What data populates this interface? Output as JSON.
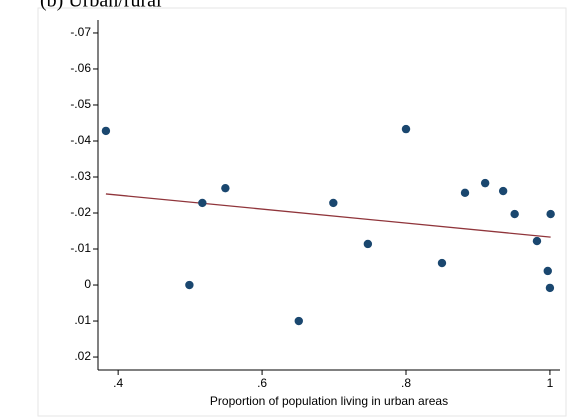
{
  "chart_data": {
    "type": "scatter",
    "title": "(b) Urban/rural",
    "x_label": "Proportion of population living in urban areas",
    "x": [
      0.383,
      0.517,
      0.549,
      0.499,
      0.651,
      0.699,
      0.747,
      0.8,
      0.85,
      0.882,
      0.91,
      0.935,
      0.951,
      0.982,
      0.997,
      1.001,
      1.0
    ],
    "values": [
      -0.0428,
      -0.0228,
      -0.0269,
      0,
      0.01,
      -0.0228,
      -0.0114,
      -0.0433,
      -0.0061,
      -0.0256,
      -0.0283,
      -0.0261,
      -0.0197,
      -0.0122,
      -0.0039,
      -0.0197,
      0.0008
    ],
    "color": "#1a476f",
    "fit": {
      "x": [
        0.383,
        1.001
      ],
      "values": [
        -0.0253,
        -0.0133
      ],
      "color": "#90353b"
    },
    "xlim": [
      0.372,
      1.014
    ],
    "xticks": [
      {
        "value": 0.4,
        "label": ".4"
      },
      {
        "value": 0.6,
        "label": ".6"
      },
      {
        "value": 0.8,
        "label": ".8"
      },
      1
    ],
    "ylim": [
      0.0236,
      -0.0736
    ],
    "yticks": [
      {
        "value": -0.07,
        "label": "-.07"
      },
      {
        "value": -0.06,
        "label": "-.06"
      },
      {
        "value": -0.05,
        "label": "-.05"
      },
      {
        "value": -0.04,
        "label": "-.04"
      },
      {
        "value": -0.03,
        "label": "-.03"
      },
      {
        "value": -0.02,
        "label": "-.02"
      },
      {
        "value": -0.01,
        "label": "-.01"
      },
      0,
      {
        "value": 0.01,
        "label": ".01"
      },
      {
        "value": 0.02,
        "label": ".02"
      }
    ]
  }
}
